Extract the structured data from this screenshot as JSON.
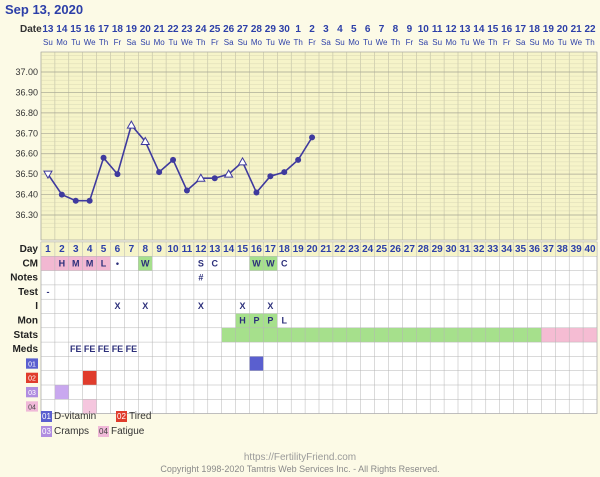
{
  "header": {
    "title": "Sep 13, 2020"
  },
  "colors": {
    "grid_bg": "#f6f4c9",
    "line": "#3f3a9e",
    "cm_pink": "#f2b8d2",
    "green": "#a6e08c",
    "stats_pink": "#f5bcd3",
    "accent": "#2c3fa8"
  },
  "chart_data": {
    "type": "line",
    "x_dates": [
      "13",
      "14",
      "15",
      "16",
      "17",
      "18",
      "19",
      "20",
      "21",
      "22",
      "23",
      "24",
      "25",
      "26",
      "27",
      "28",
      "29",
      "30",
      "1",
      "2",
      "3",
      "4",
      "5",
      "6",
      "7",
      "8",
      "9",
      "10",
      "11",
      "12",
      "13",
      "14",
      "15",
      "16",
      "17",
      "18",
      "19",
      "20",
      "21",
      "22"
    ],
    "x_weekdays": [
      "Su",
      "Mo",
      "Tu",
      "We",
      "Th",
      "Fr",
      "Sa",
      "Su",
      "Mo",
      "Tu",
      "We",
      "Th",
      "Fr",
      "Sa",
      "Su",
      "Mo",
      "Tu",
      "We",
      "Th",
      "Fr",
      "Sa",
      "Su",
      "Mo",
      "Tu",
      "We",
      "Th",
      "Fr",
      "Sa",
      "Su",
      "Mo",
      "Tu",
      "We",
      "Th",
      "Fr",
      "Sa",
      "Su",
      "Mo",
      "Tu",
      "We",
      "Th"
    ],
    "days": [
      "1",
      "2",
      "3",
      "4",
      "5",
      "6",
      "7",
      "8",
      "9",
      "10",
      "11",
      "12",
      "13",
      "14",
      "15",
      "16",
      "17",
      "18",
      "19",
      "20",
      "21",
      "22",
      "23",
      "24",
      "25",
      "26",
      "27",
      "28",
      "29",
      "30",
      "31",
      "32",
      "33",
      "34",
      "35",
      "36",
      "37",
      "38",
      "39",
      "40"
    ],
    "y_ticks": [
      "37.00",
      "36.90",
      "36.80",
      "36.70",
      "36.60",
      "36.50",
      "36.40",
      "36.30"
    ],
    "ylim": [
      36.2,
      37.1
    ],
    "temps": [
      36.5,
      36.4,
      36.37,
      36.37,
      36.58,
      36.5,
      36.74,
      36.66,
      36.51,
      36.57,
      36.42,
      36.48,
      36.48,
      36.5,
      36.56,
      36.41,
      36.49,
      36.51,
      36.57,
      36.68
    ],
    "open_markers": [
      0,
      6,
      7,
      11,
      13,
      14
    ]
  },
  "rows": {
    "labels": [
      "Day",
      "CM",
      "Notes",
      "Test",
      "I",
      "Mon",
      "Stats",
      "Meds",
      "",
      "",
      "",
      ""
    ],
    "cm": [
      "",
      "H",
      "M",
      "M",
      "L",
      "•",
      "",
      "W",
      "",
      "",
      "",
      "",
      "C",
      "",
      "",
      "W",
      "W",
      "C"
    ],
    "notes": [
      "",
      "",
      "",
      "",
      "",
      "",
      "",
      "",
      "",
      "",
      "",
      "#"
    ],
    "test": [
      "-"
    ],
    "cm_s": [
      "",
      "",
      "",
      "",
      "",
      "",
      "",
      "",
      "",
      "",
      "",
      "S"
    ],
    "i": [
      "",
      "",
      "",
      "",
      "",
      "X",
      "",
      "X",
      "",
      "",
      "",
      "X",
      "",
      "",
      "X",
      "",
      "X"
    ],
    "mon": [
      "",
      "",
      "",
      "",
      "",
      "",
      "",
      "",
      "",
      "",
      "",
      "",
      "",
      "",
      "H",
      "P",
      "P",
      "L"
    ],
    "meds": [
      "",
      "",
      "FE",
      "FE",
      "FE",
      "FE",
      "FE"
    ]
  },
  "legend": {
    "items": [
      {
        "num": "01",
        "label": "D-vitamin",
        "color": "#5a5fcf"
      },
      {
        "num": "02",
        "label": "Tired",
        "color": "#e03c2c"
      },
      {
        "num": "03",
        "label": "Cramps",
        "color": "#b08de0"
      },
      {
        "num": "04",
        "label": "Fatigue",
        "color": "#f0b9d8"
      }
    ]
  },
  "footer": {
    "url": "https://FertilityFriend.com",
    "copyright": "Copyright 1998-2020 Tamtris Web Services Inc. - All Rights Reserved."
  }
}
